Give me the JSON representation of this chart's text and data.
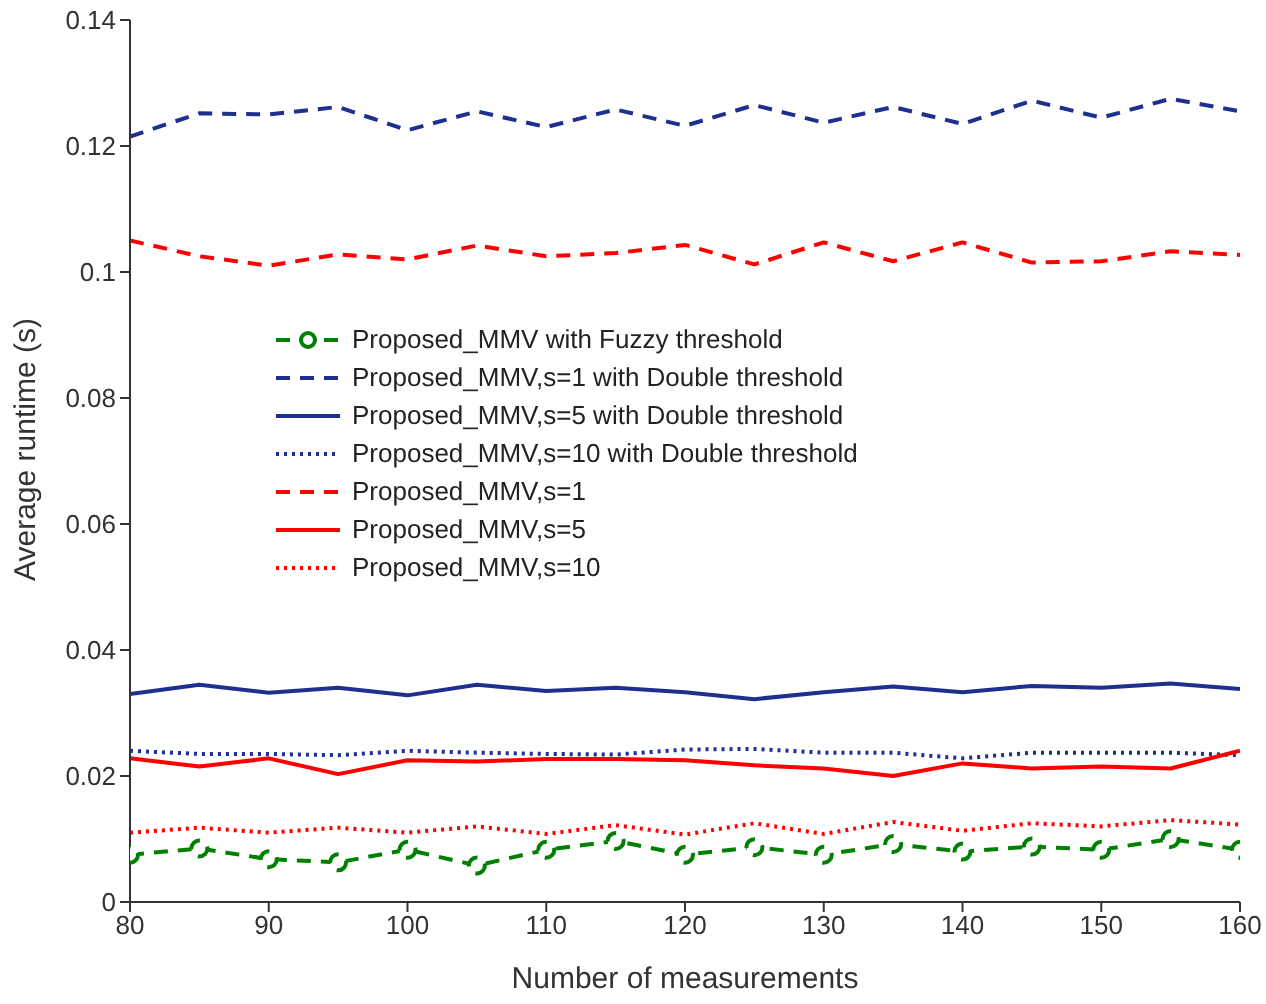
{
  "chart_data": {
    "type": "line",
    "xlabel": "Number of measurements",
    "ylabel": "Average runtime (s)",
    "x": [
      80,
      85,
      90,
      95,
      100,
      105,
      110,
      115,
      120,
      125,
      130,
      135,
      140,
      145,
      150,
      155,
      160
    ],
    "xlim": [
      80,
      160
    ],
    "xticks": [
      80,
      90,
      100,
      110,
      120,
      130,
      140,
      150,
      160
    ],
    "ylim": [
      0,
      0.14
    ],
    "yticks": [
      0,
      0.02,
      0.04,
      0.06,
      0.08,
      0.1,
      0.12,
      0.14
    ],
    "grid": false,
    "legend": "left",
    "series": [
      {
        "name": "Proposed_MMV with Fuzzy threshold",
        "color": "#008000",
        "marker": "circle",
        "line_style": "dashed",
        "values": [
          0.0075,
          0.0085,
          0.0068,
          0.0063,
          0.0083,
          0.0058,
          0.0083,
          0.0097,
          0.0075,
          0.0087,
          0.0075,
          0.0092,
          0.008,
          0.0088,
          0.0083,
          0.01,
          0.0083
        ]
      },
      {
        "name": "Proposed_MMV,s=1 with Double threshold",
        "color": "#1f2f8f",
        "marker": "none",
        "line_style": "dashed",
        "values": [
          0.1215,
          0.1252,
          0.125,
          0.1262,
          0.1225,
          0.1255,
          0.123,
          0.1258,
          0.1232,
          0.1265,
          0.1237,
          0.1262,
          0.1235,
          0.1272,
          0.1245,
          0.1275,
          0.1255
        ]
      },
      {
        "name": "Proposed_MMV,s=5 with Double threshold",
        "color": "#1f2f8f",
        "marker": "none",
        "line_style": "solid",
        "values": [
          0.033,
          0.0345,
          0.0332,
          0.034,
          0.0328,
          0.0345,
          0.0335,
          0.034,
          0.0333,
          0.0322,
          0.0333,
          0.0342,
          0.0333,
          0.0343,
          0.034,
          0.0347,
          0.0338
        ]
      },
      {
        "name": "Proposed_MMV,s=10 with Double threshold",
        "color": "#1f2f8f",
        "marker": "none",
        "line_style": "dotted",
        "values": [
          0.024,
          0.0235,
          0.0235,
          0.0233,
          0.024,
          0.0237,
          0.0235,
          0.0234,
          0.0242,
          0.0243,
          0.0237,
          0.0237,
          0.0228,
          0.0237,
          0.0237,
          0.0237,
          0.0233
        ]
      },
      {
        "name": "Proposed_MMV,s=1",
        "color": "#ff0000",
        "marker": "none",
        "line_style": "dashed",
        "values": [
          0.105,
          0.1025,
          0.101,
          0.1028,
          0.102,
          0.1042,
          0.1025,
          0.103,
          0.1043,
          0.1012,
          0.1047,
          0.1017,
          0.1047,
          0.1015,
          0.1017,
          0.1033,
          0.1027
        ]
      },
      {
        "name": "Proposed_MMV,s=5",
        "color": "#ff0000",
        "marker": "none",
        "line_style": "solid",
        "values": [
          0.0228,
          0.0215,
          0.0228,
          0.0203,
          0.0225,
          0.0223,
          0.0227,
          0.0227,
          0.0225,
          0.0217,
          0.0212,
          0.02,
          0.022,
          0.0212,
          0.0215,
          0.0212,
          0.024
        ]
      },
      {
        "name": "Proposed_MMV,s=10",
        "color": "#ff0000",
        "marker": "none",
        "line_style": "dotted",
        "values": [
          0.011,
          0.0118,
          0.011,
          0.0118,
          0.011,
          0.012,
          0.0108,
          0.0122,
          0.0107,
          0.0125,
          0.0108,
          0.0127,
          0.0113,
          0.0125,
          0.012,
          0.013,
          0.0123
        ]
      }
    ]
  }
}
